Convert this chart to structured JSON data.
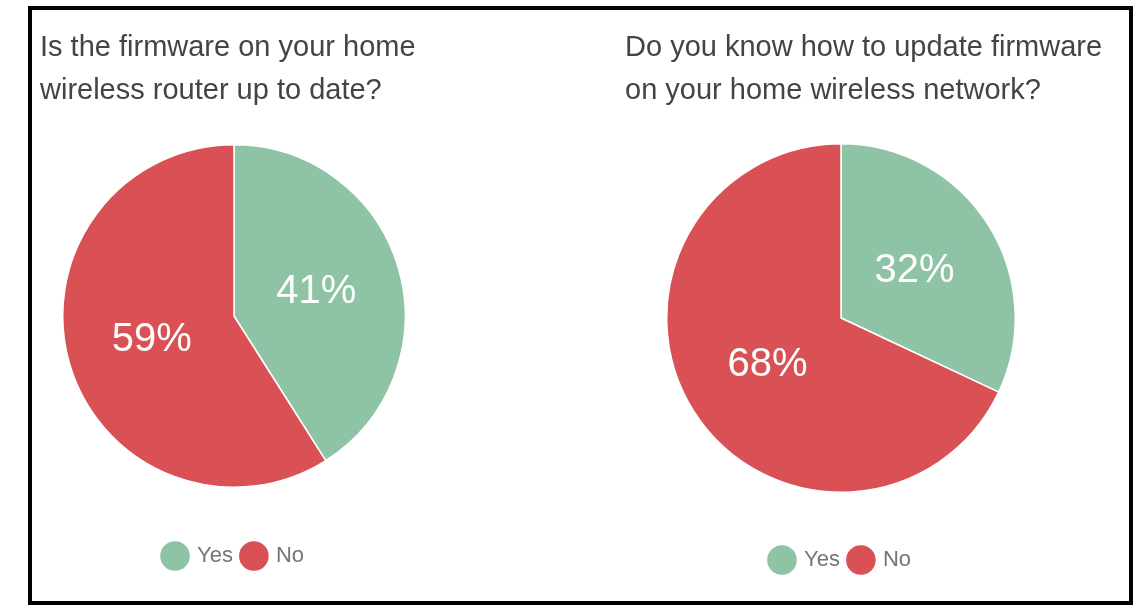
{
  "chart_data": [
    {
      "type": "pie",
      "title": "Is the firmware on your home wireless router up to date?",
      "categories": [
        "Yes",
        "No"
      ],
      "values": [
        41,
        59
      ],
      "colors": [
        "#8fc3a6",
        "#d95155"
      ],
      "value_labels": [
        "41%",
        "59%"
      ],
      "legend": "bottom"
    },
    {
      "type": "pie",
      "title": "Do you know how to update firmware on your home wireless network?",
      "categories": [
        "Yes",
        "No"
      ],
      "values": [
        32,
        68
      ],
      "colors": [
        "#8fc3a6",
        "#d95155"
      ],
      "value_labels": [
        "32%",
        "68%"
      ],
      "legend": "bottom"
    }
  ]
}
